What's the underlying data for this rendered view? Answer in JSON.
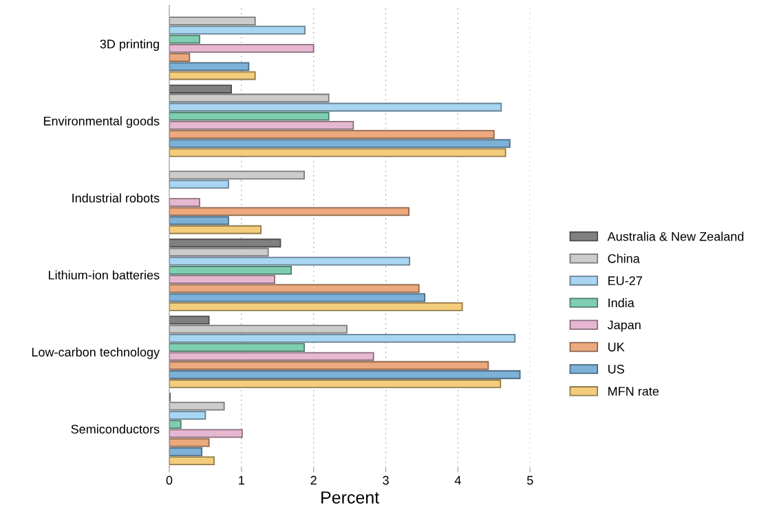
{
  "chart_data": {
    "type": "bar",
    "orientation": "horizontal",
    "xlabel": "Percent",
    "categories": [
      "3D printing",
      "Environmental goods",
      "Industrial robots",
      "Lithium-ion batteries",
      "Low-carbon technology",
      "Semiconductors"
    ],
    "xlim": [
      0,
      5
    ],
    "xticks": [
      0,
      1,
      2,
      3,
      4,
      5
    ],
    "grid": "x",
    "legend": "right",
    "series": [
      {
        "name": "Australia & New Zealand",
        "color": "#808080",
        "values": [
          null,
          0.86,
          null,
          1.54,
          0.55,
          0.01
        ]
      },
      {
        "name": "China",
        "color": "#cccccc",
        "values": [
          1.19,
          2.21,
          1.87,
          1.37,
          2.46,
          0.76
        ]
      },
      {
        "name": "EU-27",
        "color": "#a8d6f2",
        "values": [
          1.88,
          4.6,
          0.82,
          3.33,
          4.79,
          0.5
        ]
      },
      {
        "name": "India",
        "color": "#80ceb1",
        "values": [
          0.42,
          2.21,
          null,
          1.69,
          1.87,
          0.16
        ]
      },
      {
        "name": "Japan",
        "color": "#e6b7d1",
        "values": [
          2.0,
          2.55,
          0.42,
          1.46,
          2.83,
          1.01
        ]
      },
      {
        "name": "UK",
        "color": "#eba97d",
        "values": [
          0.28,
          4.5,
          3.32,
          3.46,
          4.42,
          0.55
        ]
      },
      {
        "name": "US",
        "color": "#7db1d7",
        "values": [
          1.1,
          4.72,
          0.82,
          3.54,
          4.86,
          0.45
        ]
      },
      {
        "name": "MFN rate",
        "color": "#f3cd7b",
        "values": [
          1.19,
          4.66,
          1.27,
          4.06,
          4.59,
          0.62
        ]
      }
    ]
  }
}
